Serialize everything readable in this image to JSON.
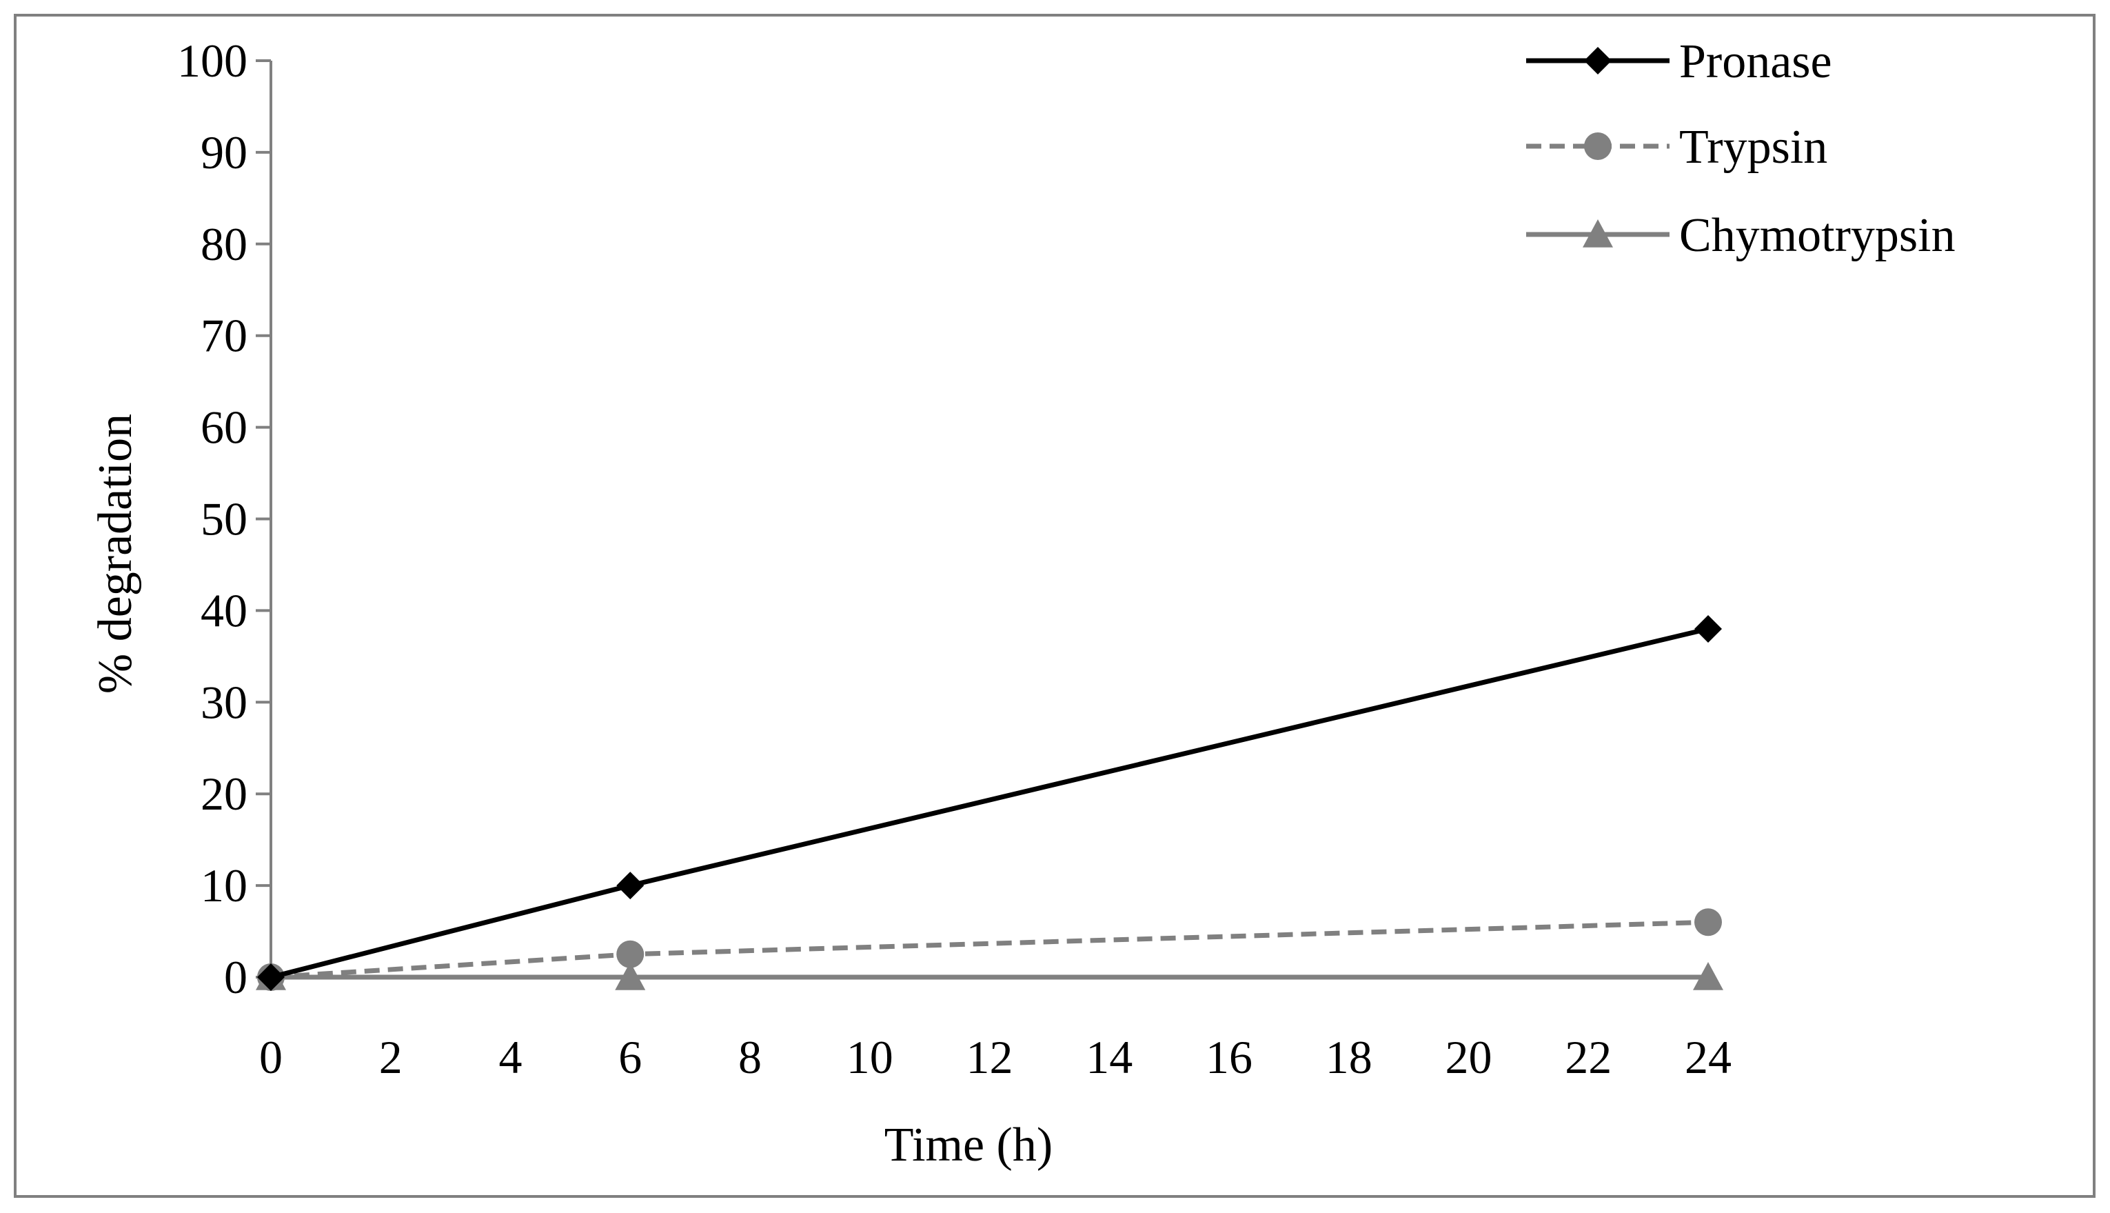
{
  "chart_data": {
    "type": "line",
    "title": "",
    "xlabel": "Time (h)",
    "ylabel": "% degradation",
    "xlim": [
      0,
      24
    ],
    "ylim": [
      0,
      100
    ],
    "xticks": [
      "0",
      "2",
      "4",
      "6",
      "8",
      "10",
      "12",
      "14",
      "16",
      "18",
      "20",
      "22",
      "24"
    ],
    "yticks": [
      "0",
      "10",
      "20",
      "30",
      "40",
      "50",
      "60",
      "70",
      "80",
      "90",
      "100"
    ],
    "grid": false,
    "legend_position": "top-right",
    "series": [
      {
        "name": "Pronase",
        "x": [
          0,
          6,
          24
        ],
        "values": [
          0,
          10,
          38
        ],
        "color": "#000000",
        "line_style": "solid",
        "marker": "diamond"
      },
      {
        "name": "Trypsin",
        "x": [
          0,
          6,
          24
        ],
        "values": [
          0,
          2.5,
          6
        ],
        "color": "#808080",
        "line_style": "dashed",
        "marker": "circle"
      },
      {
        "name": "Chymotrypsin",
        "x": [
          0,
          6,
          24
        ],
        "values": [
          0,
          0,
          0
        ],
        "color": "#808080",
        "line_style": "solid",
        "marker": "triangle"
      }
    ]
  }
}
